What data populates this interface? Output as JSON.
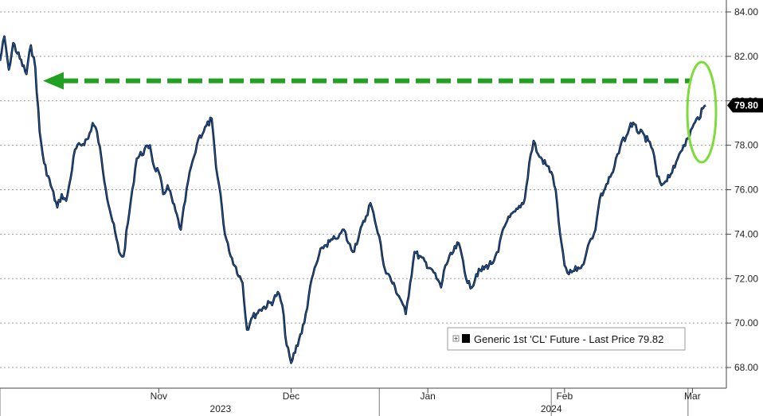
{
  "chart_data": {
    "type": "line",
    "title": "",
    "xlabel": "",
    "ylabel": "",
    "ylim": [
      67.2,
      84.6
    ],
    "y_ticks": [
      "84.00",
      "82.00",
      "80.00",
      "78.00",
      "76.00",
      "74.00",
      "72.00",
      "70.00",
      "68.00"
    ],
    "y_tick_values": [
      84,
      82,
      80,
      78,
      76,
      74,
      72,
      70,
      68
    ],
    "x_month_ticks": [
      {
        "label": "Nov",
        "date": "2023-11-01"
      },
      {
        "label": "Dec",
        "date": "2023-12-01"
      },
      {
        "label": "Jan",
        "date": "2024-01-01"
      },
      {
        "label": "Feb",
        "date": "2024-02-01"
      },
      {
        "label": "Mar",
        "date": "2024-03-01"
      }
    ],
    "x_year_ticks": [
      {
        "label": "2023",
        "date": "2023-11-15"
      },
      {
        "label": "2024",
        "date": "2024-01-29"
      }
    ],
    "year_separator_dates": [
      "2023-09-26",
      "2023-12-21",
      "2024-01-29",
      "2024-02-29"
    ],
    "last_value_label": "79.80",
    "reference_level": 80.9,
    "grid": true,
    "legend_position": "bottom-right",
    "legend": {
      "label": "Generic 1st 'CL' Future - Last Price 79.82"
    },
    "colors": {
      "series": "#1f5fb0",
      "series_edge": "#000000",
      "arrow": "#22a022",
      "ellipse": "#7ddc3a",
      "gridline": "#9a9a9a",
      "last_label_bg": "#000000"
    },
    "series": [
      {
        "name": "Generic 1st 'CL' Future - Last Price 79.82",
        "x": [
          "2023-09-26",
          "2023-09-27",
          "2023-09-28",
          "2023-09-29",
          "2023-10-02",
          "2023-10-03",
          "2023-10-04",
          "2023-10-05",
          "2023-10-06",
          "2023-10-09",
          "2023-10-10",
          "2023-10-11",
          "2023-10-12",
          "2023-10-13",
          "2023-10-16",
          "2023-10-17",
          "2023-10-18",
          "2023-10-19",
          "2023-10-20",
          "2023-10-23",
          "2023-10-24",
          "2023-10-25",
          "2023-10-26",
          "2023-10-27",
          "2023-10-30",
          "2023-10-31",
          "2023-11-01",
          "2023-11-02",
          "2023-11-03",
          "2023-11-06",
          "2023-11-07",
          "2023-11-08",
          "2023-11-09",
          "2023-11-10",
          "2023-11-13",
          "2023-11-14",
          "2023-11-15",
          "2023-11-16",
          "2023-11-17",
          "2023-11-20",
          "2023-11-21",
          "2023-11-22",
          "2023-11-24",
          "2023-11-27",
          "2023-11-28",
          "2023-11-29",
          "2023-11-30",
          "2023-12-01",
          "2023-12-04",
          "2023-12-05",
          "2023-12-06",
          "2023-12-07",
          "2023-12-08",
          "2023-12-11",
          "2023-12-12",
          "2023-12-13",
          "2023-12-14",
          "2023-12-15",
          "2023-12-18",
          "2023-12-19",
          "2023-12-20",
          "2023-12-21",
          "2023-12-22",
          "2023-12-26",
          "2023-12-27",
          "2023-12-28",
          "2023-12-29",
          "2024-01-02",
          "2024-01-03",
          "2024-01-04",
          "2024-01-05",
          "2024-01-08",
          "2024-01-09",
          "2024-01-10",
          "2024-01-11",
          "2024-01-12",
          "2024-01-16",
          "2024-01-17",
          "2024-01-18",
          "2024-01-19",
          "2024-01-22",
          "2024-01-23",
          "2024-01-24",
          "2024-01-25",
          "2024-01-26",
          "2024-01-29",
          "2024-01-30",
          "2024-01-31",
          "2024-02-01",
          "2024-02-02",
          "2024-02-05",
          "2024-02-06",
          "2024-02-07",
          "2024-02-08",
          "2024-02-09",
          "2024-02-12",
          "2024-02-13",
          "2024-02-14",
          "2024-02-15",
          "2024-02-16",
          "2024-02-20",
          "2024-02-21",
          "2024-02-22",
          "2024-02-23",
          "2024-02-26",
          "2024-02-27",
          "2024-02-28",
          "2024-02-29",
          "2024-03-01",
          "2024-03-04"
        ],
        "values": [
          81.8,
          82.9,
          81.4,
          82.6,
          81.2,
          82.5,
          81.5,
          78.6,
          77.2,
          75.2,
          75.8,
          75.5,
          76.5,
          77.8,
          78.3,
          79.0,
          78.6,
          77.4,
          76.0,
          73.2,
          73.0,
          74.5,
          76.0,
          77.4,
          78.0,
          77.0,
          76.8,
          75.8,
          76.2,
          74.2,
          75.5,
          76.8,
          77.5,
          78.3,
          79.2,
          77.0,
          75.8,
          74.0,
          73.2,
          71.8,
          69.7,
          70.2,
          70.6,
          71.0,
          71.4,
          70.8,
          69.0,
          68.2,
          70.0,
          71.2,
          72.2,
          72.8,
          73.4,
          73.8,
          74.0,
          74.2,
          73.6,
          73.2,
          74.8,
          75.4,
          74.6,
          73.9,
          72.6,
          71.0,
          70.4,
          71.8,
          73.2,
          72.4,
          72.0,
          71.6,
          72.6,
          73.6,
          72.8,
          71.8,
          71.6,
          72.2,
          72.8,
          73.2,
          74.2,
          74.6,
          75.2,
          75.6,
          77.2,
          78.2,
          77.6,
          76.8,
          76.0,
          74.0,
          72.6,
          72.2,
          72.6,
          73.2,
          73.8,
          74.2,
          75.6,
          76.8,
          77.6,
          78.2,
          78.4,
          79.0,
          78.2,
          77.8,
          76.6,
          76.2,
          77.0,
          77.6,
          78.0,
          78.3,
          78.8,
          79.8
        ]
      }
    ]
  }
}
